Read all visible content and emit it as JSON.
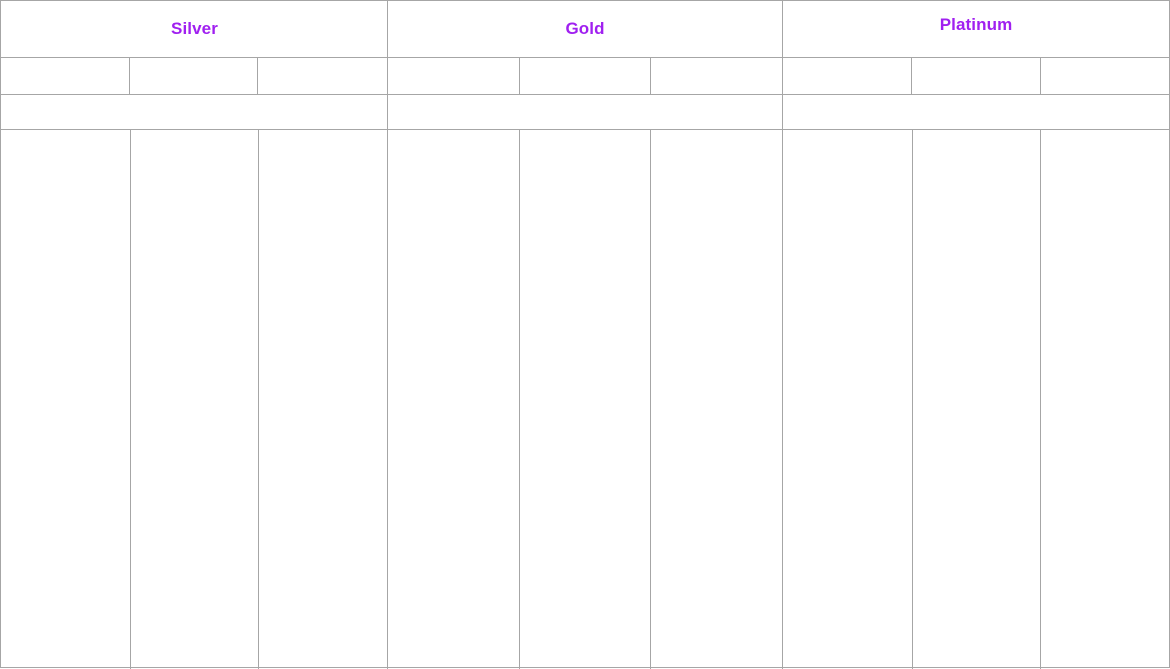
{
  "tiers": [
    {
      "name": "Silver"
    },
    {
      "name": "Gold"
    },
    {
      "name": "Platinum"
    }
  ],
  "colors": {
    "title": "#a020f0",
    "grid_line": "#a6a6a6",
    "background": "#ffffff"
  }
}
